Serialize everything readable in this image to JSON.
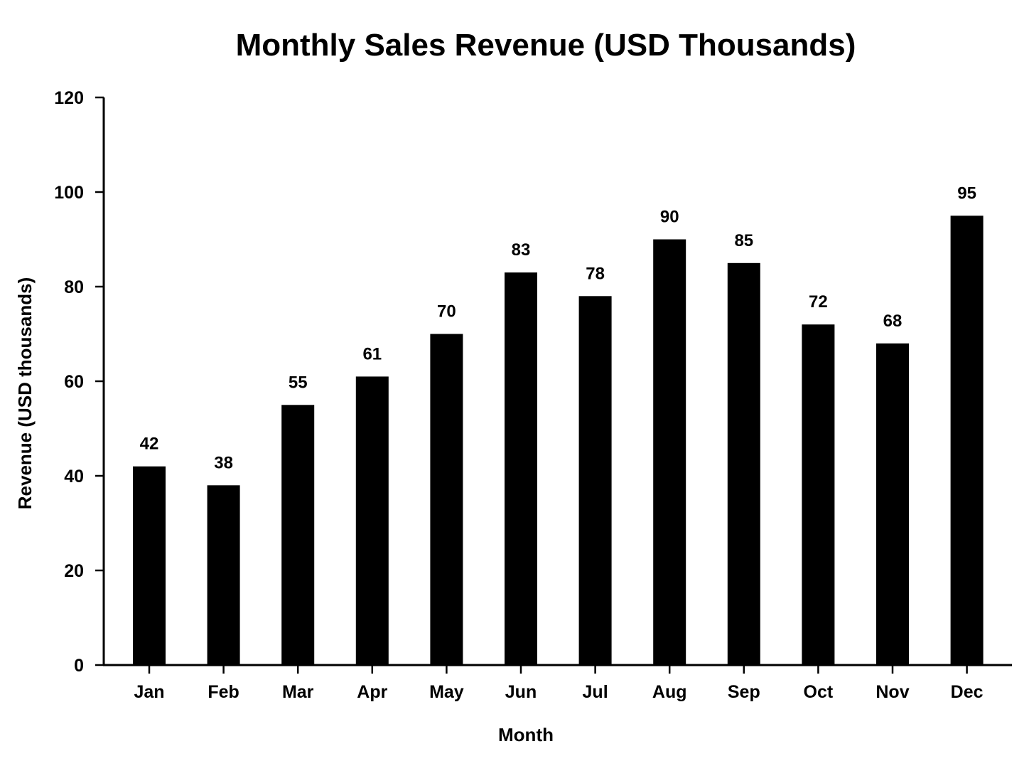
{
  "chart_data": {
    "type": "bar",
    "title": "Monthly Sales Revenue (USD Thousands)",
    "xlabel": "Month",
    "ylabel": "Revenue (USD thousands)",
    "categories": [
      "Jan",
      "Feb",
      "Mar",
      "Apr",
      "May",
      "Jun",
      "Jul",
      "Aug",
      "Sep",
      "Oct",
      "Nov",
      "Dec"
    ],
    "values": [
      42,
      38,
      55,
      61,
      70,
      83,
      78,
      90,
      85,
      72,
      68,
      95
    ],
    "data_labels": [
      "42",
      "38",
      "55",
      "61",
      "70",
      "83",
      "78",
      "90",
      "85",
      "72",
      "68",
      "95"
    ],
    "ylim": [
      0,
      120
    ],
    "yticks": [
      0,
      20,
      40,
      60,
      80,
      100,
      120
    ],
    "ytick_labels": [
      "0",
      "20",
      "40",
      "60",
      "80",
      "100",
      "120"
    ],
    "grid": false,
    "legend": "none",
    "bar_color": "#000000"
  }
}
